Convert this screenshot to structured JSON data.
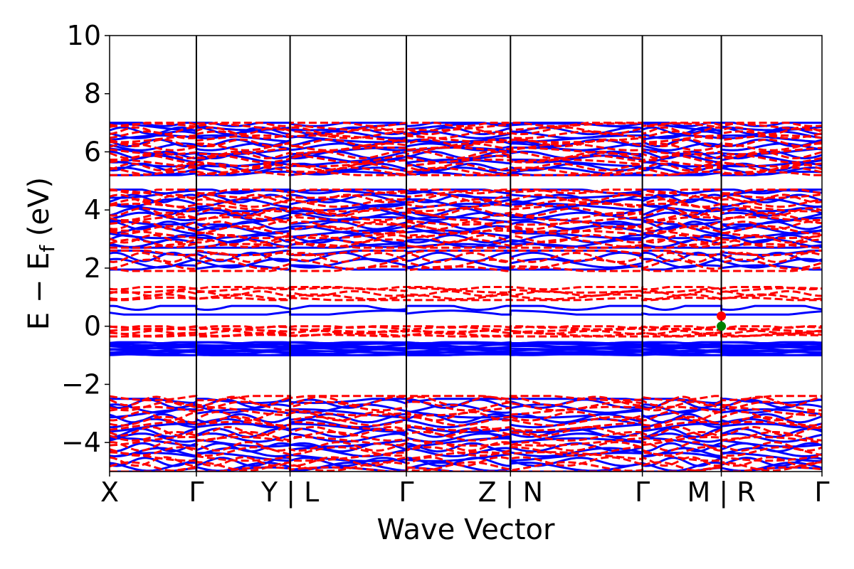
{
  "chart_data": {
    "type": "line",
    "title": "",
    "xlabel": "Wave Vector",
    "ylabel": "E − E_f (eV)",
    "ylabel_parts": {
      "main": "E − E",
      "sub": "f",
      "unit": " (eV)"
    },
    "ylim": [
      -5,
      10
    ],
    "yticks": [
      -4,
      -2,
      0,
      2,
      4,
      6,
      8,
      10
    ],
    "ytick_labels": [
      "−4",
      "−2",
      "0",
      "2",
      "4",
      "6",
      "8",
      "10"
    ],
    "xlim": [
      0,
      8.21
    ],
    "kpath_positions": [
      0,
      1.0,
      2.08,
      3.42,
      4.62,
      6.14,
      7.05,
      8.21
    ],
    "kpath_labels": [
      "X",
      "Γ",
      "Y | L",
      "Γ",
      "Z | N",
      "Γ",
      "M | R",
      "Γ"
    ],
    "grid": false,
    "legend": "none",
    "series": [
      {
        "spin": "up",
        "style": "solid",
        "color": "#0000ff",
        "band_groups": [
          {
            "range": [
              -5.0,
              -2.5
            ],
            "approx_bands": 16
          },
          {
            "range": [
              -1.0,
              -0.55
            ],
            "approx_bands": 12
          },
          {
            "range": [
              0.4,
              0.7
            ],
            "approx_bands": 2
          },
          {
            "range": [
              1.95,
              2.6
            ],
            "approx_bands": 4
          },
          {
            "range": [
              2.7,
              4.7
            ],
            "approx_bands": 14
          },
          {
            "range": [
              5.2,
              7.0
            ],
            "approx_bands": 14
          }
        ]
      },
      {
        "spin": "down",
        "style": "dashed",
        "color": "#ff0000",
        "band_groups": [
          {
            "range": [
              -5.0,
              -2.4
            ],
            "approx_bands": 16
          },
          {
            "range": [
              -0.35,
              0.0
            ],
            "approx_bands": 6
          },
          {
            "range": [
              0.9,
              1.35
            ],
            "approx_bands": 5
          },
          {
            "range": [
              1.9,
              2.6
            ],
            "approx_bands": 4
          },
          {
            "range": [
              2.7,
              4.7
            ],
            "approx_bands": 14
          },
          {
            "range": [
              5.2,
              7.0
            ],
            "approx_bands": 14
          }
        ]
      }
    ],
    "markers": [
      {
        "x": 7.05,
        "y": 0.35,
        "color": "#ff0000",
        "label": ""
      },
      {
        "x": 7.05,
        "y": 0.0,
        "color": "#008000",
        "label": ""
      }
    ]
  }
}
